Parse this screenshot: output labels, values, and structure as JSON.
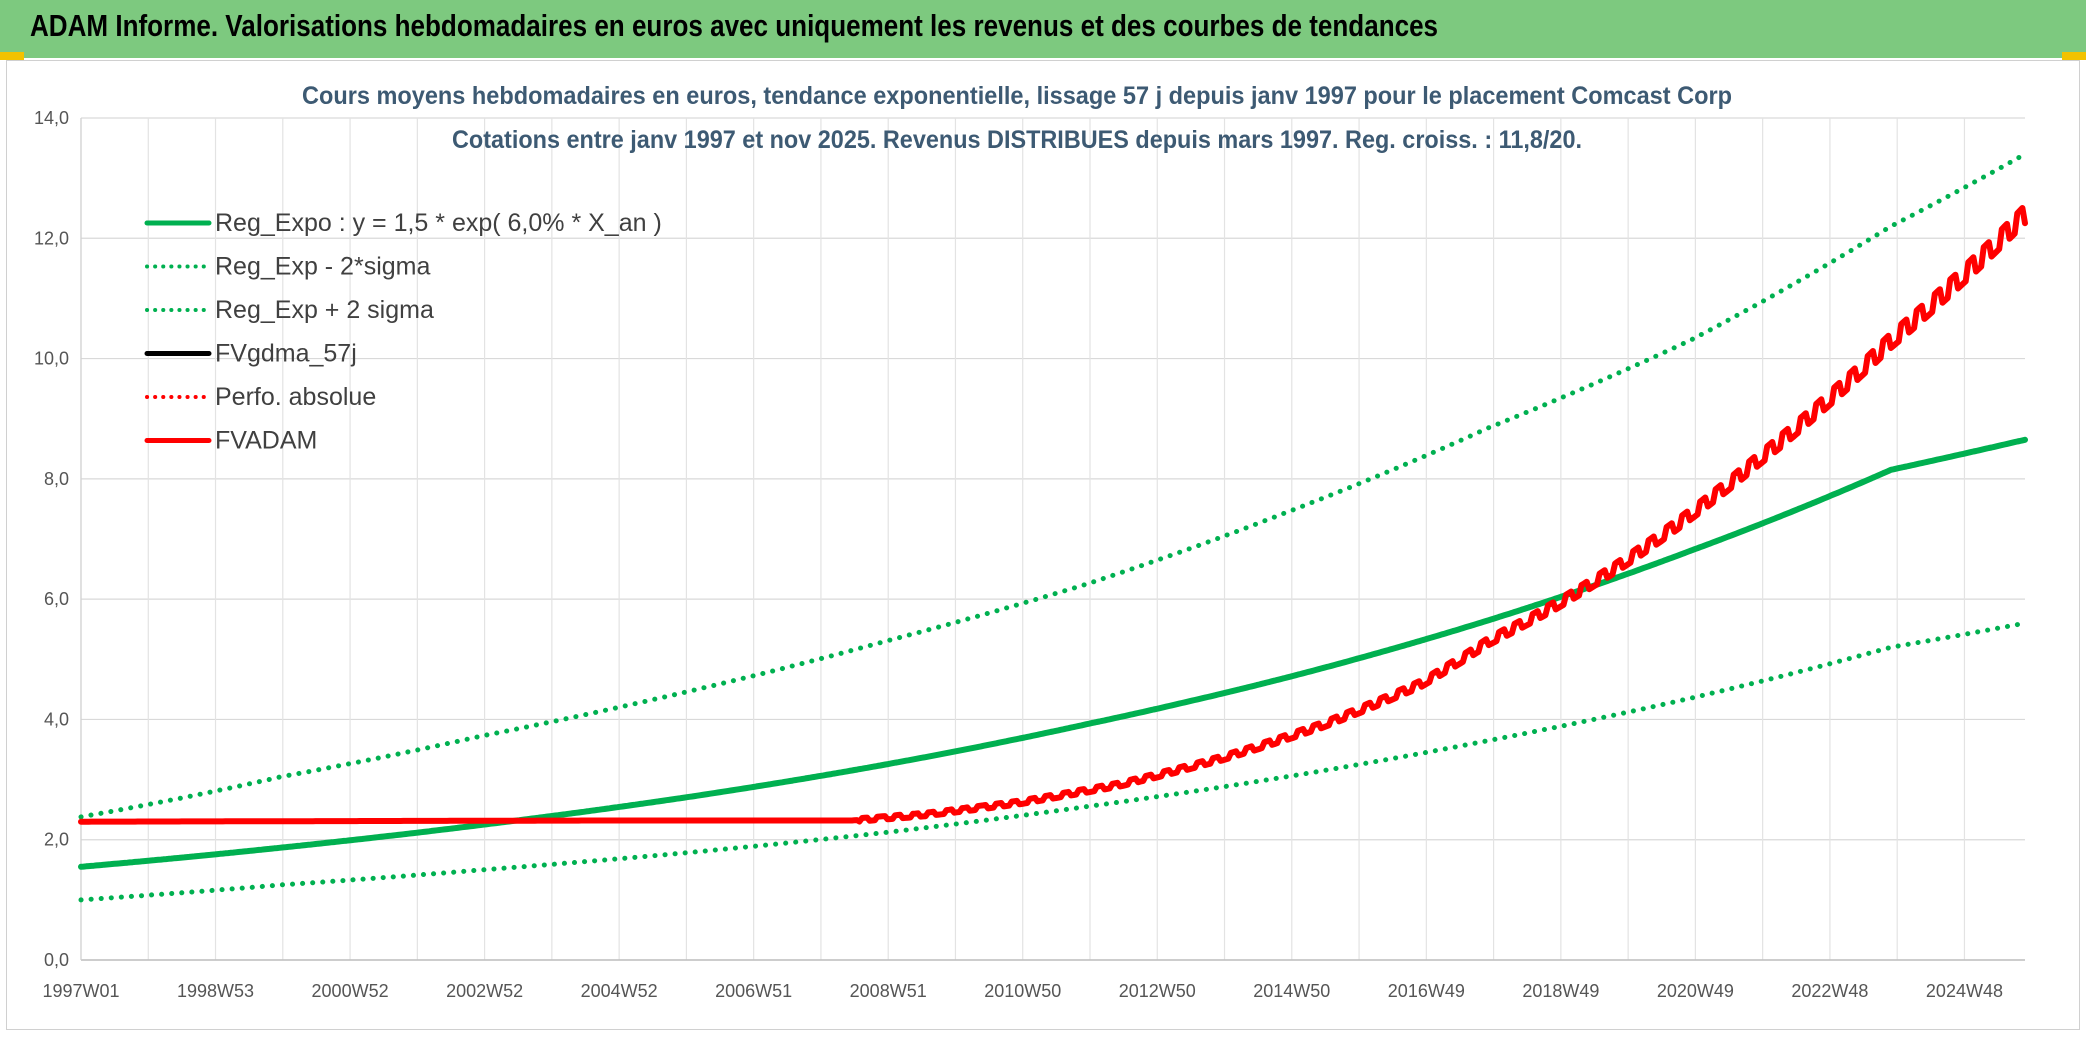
{
  "header": {
    "title": "ADAM Informe. Valorisations hebdomadaires en euros avec uniquement les revenus et des courbes de tendances"
  },
  "chart_data": {
    "type": "line",
    "title": "Cours moyens hebdomadaires en euros, tendance exponentielle, lissage 57 j depuis janv 1997 pour le placement Comcast Corp",
    "subtitle": "Cotations entre janv 1997 et nov 2025. Revenus DISTRIBUES depuis mars 1997. Reg. croiss. : 11,8/20.",
    "xlabel": "",
    "ylabel": "",
    "ylim": [
      0,
      14
    ],
    "xlim": [
      1997.0,
      2026.0
    ],
    "y_ticks": [
      "0,0",
      "2,0",
      "4,0",
      "6,0",
      "8,0",
      "10,0",
      "12,0",
      "14,0"
    ],
    "x_ticks": [
      "1997W01",
      "1998W53",
      "2000W52",
      "2002W52",
      "2004W52",
      "2006W51",
      "2008W51",
      "2010W50",
      "2012W50",
      "2014W50",
      "2016W49",
      "2018W49",
      "2020W49",
      "2022W48",
      "2024W48"
    ],
    "legend_position": "top-left",
    "series": [
      {
        "name": "Reg_Expo : y = 1,5 * exp( 6,0% *  X_an )",
        "color": "#00b050",
        "style": "solid",
        "x": [
          1997,
          2000,
          2003,
          2006,
          2009,
          2012,
          2015,
          2018,
          2021,
          2024,
          2026
        ],
        "values": [
          1.55,
          1.87,
          2.25,
          2.7,
          3.25,
          3.92,
          4.7,
          5.65,
          6.8,
          8.15,
          8.65
        ]
      },
      {
        "name": "Reg_Exp - 2*sigma",
        "color": "#00b050",
        "style": "dotted",
        "x": [
          1997,
          2000,
          2003,
          2006,
          2009,
          2012,
          2015,
          2018,
          2021,
          2024,
          2026
        ],
        "values": [
          1.0,
          1.25,
          1.5,
          1.78,
          2.12,
          2.55,
          3.05,
          3.65,
          4.35,
          5.2,
          5.6
        ]
      },
      {
        "name": "Reg_Exp + 2 sigma",
        "color": "#00b050",
        "style": "dotted",
        "x": [
          1997,
          2000,
          2003,
          2006,
          2009,
          2012,
          2015,
          2018,
          2021,
          2024,
          2026
        ],
        "values": [
          2.38,
          3.05,
          3.73,
          4.45,
          5.3,
          6.25,
          7.45,
          8.85,
          10.3,
          12.2,
          13.4
        ]
      },
      {
        "name": "FVgdma_57j",
        "color": "#000000",
        "style": "solid",
        "x": [],
        "values": []
      },
      {
        "name": "Perfo. absolue",
        "color": "#ff0000",
        "style": "dotted",
        "x": [],
        "values": []
      },
      {
        "name": "FVADAM",
        "color": "#ff0000",
        "style": "solid",
        "x": [
          1997,
          2005,
          2008.5,
          2009.6,
          2011,
          2012.5,
          2014,
          2015.5,
          2017,
          2018,
          2019,
          2020,
          2021,
          2022,
          2023,
          2024,
          2025,
          2026
        ],
        "values": [
          2.3,
          2.32,
          2.32,
          2.42,
          2.62,
          2.92,
          3.35,
          3.9,
          4.6,
          5.3,
          5.9,
          6.6,
          7.4,
          8.3,
          9.25,
          10.3,
          11.3,
          12.4
        ]
      }
    ]
  }
}
